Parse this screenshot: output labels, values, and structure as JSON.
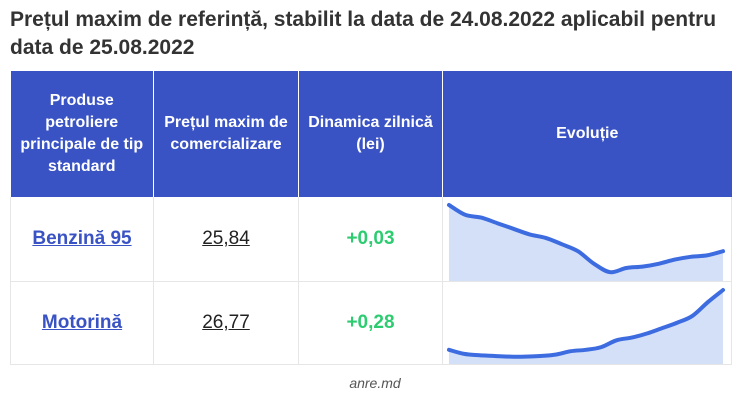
{
  "title": "Prețul maxim de referință, stabilit la data de 24.08.2022 aplicabil pentru data de 25.08.2022",
  "table": {
    "headers": [
      "Produse petroliere principale de tip standard",
      "Prețul maxim de comercializare",
      "Dinamica zilnică (lei)",
      "Evoluție"
    ],
    "rows": [
      {
        "product": "Benzină 95",
        "price": "25,84",
        "change": "+0,03",
        "trend": [
          1.0,
          0.86,
          0.82,
          0.74,
          0.66,
          0.58,
          0.53,
          0.44,
          0.34,
          0.16,
          0.04,
          0.1,
          0.12,
          0.16,
          0.22,
          0.26,
          0.28,
          0.34
        ]
      },
      {
        "product": "Motorină",
        "price": "26,77",
        "change": "+0,28",
        "trend": [
          0.12,
          0.06,
          0.04,
          0.03,
          0.02,
          0.02,
          0.03,
          0.05,
          0.1,
          0.12,
          0.16,
          0.26,
          0.3,
          0.36,
          0.44,
          0.52,
          0.62,
          0.82,
          1.0
        ]
      }
    ]
  },
  "colors": {
    "header_bg": "#3a53c4",
    "link": "#3a53c4",
    "positive": "#2ecc71",
    "spark_line": "#3d6be0",
    "spark_fill": "#c9d8f6"
  },
  "source": "anre.md"
}
